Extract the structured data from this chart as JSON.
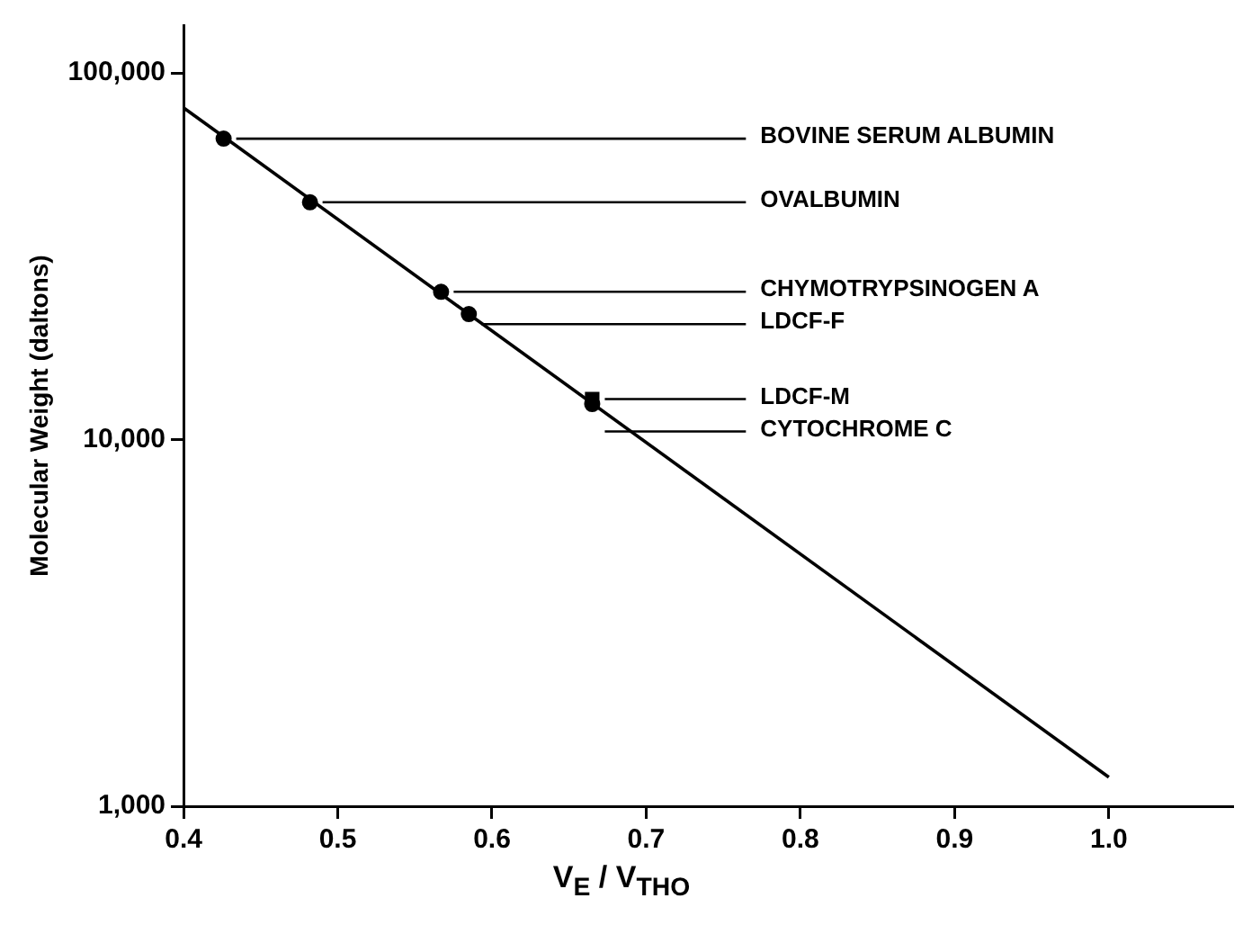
{
  "chart_data": {
    "type": "scatter",
    "xlabel": "V$_{E}$ / V$_{THO}$",
    "ylabel": "Molecular Weight (daltons)",
    "log": "y",
    "grid": false,
    "legend": false,
    "xlim": [
      0.4,
      1.08
    ],
    "xticks": [
      0.4,
      0.5,
      0.6,
      0.7,
      0.8,
      0.9,
      {
        "value": 1.0,
        "label": "1.0"
      }
    ],
    "ylim": [
      1000,
      135000
    ],
    "yticks": [
      {
        "value": 1000,
        "label": "1,000"
      },
      {
        "value": 10000,
        "label": "10,000"
      },
      {
        "value": 100000,
        "label": "100,000"
      }
    ],
    "series": [
      {
        "type": "line",
        "color": "#000000",
        "marker": "none",
        "line_style": "solid",
        "x": [
          0.4,
          1.0
        ],
        "values": [
          80400,
          1200
        ]
      },
      {
        "color": "#000000",
        "marker": "circle",
        "x": [
          0.426,
          0.482,
          0.567,
          0.585,
          0.665
        ],
        "values": [
          66200,
          44400,
          25300,
          22000,
          12500
        ]
      },
      {
        "color": "#000000",
        "marker": "square",
        "x": [
          0.665
        ],
        "values": [
          12900
        ]
      }
    ],
    "annotations": [
      {
        "text": "BOVINE SERUM ALBUMIN",
        "x": 0.426,
        "y": 66200
      },
      {
        "text": "OVALBUMIN",
        "x": 0.482,
        "y": 44400
      },
      {
        "text": "CHYMOTRYPSINOGEN A",
        "x": 0.567,
        "y": 25300
      },
      {
        "text": "LDCF-F",
        "x": 0.585,
        "y": 22000
      },
      {
        "text": "LDCF-M",
        "x": 0.665,
        "y": 12900
      },
      {
        "text": "CYTOCHROME C",
        "x": 0.665,
        "y": 12500
      }
    ]
  }
}
